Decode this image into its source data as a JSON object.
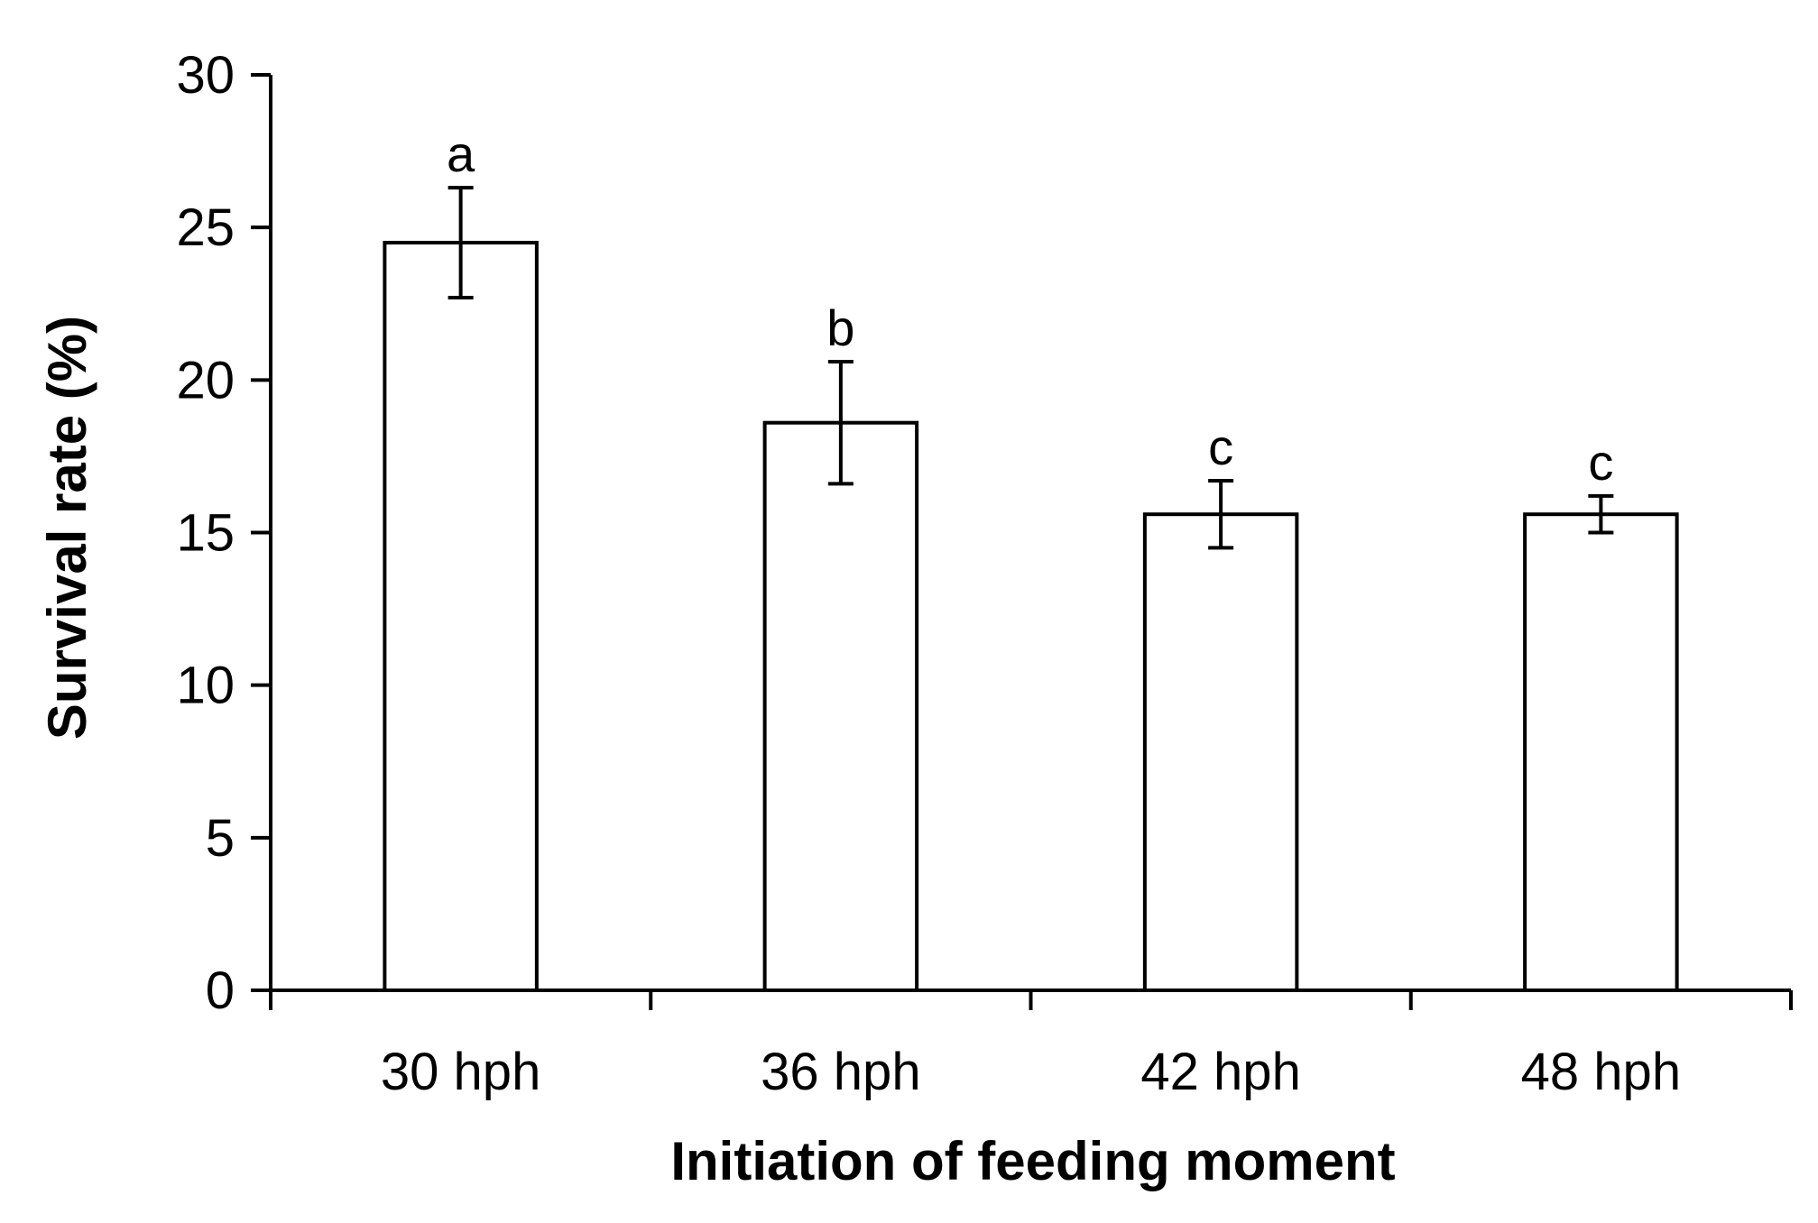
{
  "chart_data": {
    "type": "bar",
    "title": "",
    "xlabel": "Initiation of feeding moment",
    "ylabel": "Survival rate (%)",
    "ylim": [
      0,
      30
    ],
    "yticks": [
      0,
      5,
      10,
      15,
      20,
      25,
      30
    ],
    "categories": [
      "30 hph",
      "36 hph",
      "42 hph",
      "48 hph"
    ],
    "values": [
      24.5,
      18.6,
      15.6,
      15.6
    ],
    "errors": [
      1.8,
      2.0,
      1.1,
      0.6
    ],
    "significance_letters": [
      "a",
      "b",
      "c",
      "c"
    ],
    "grid": false,
    "legend": null
  },
  "colors": {
    "bar_fill": "#ffffff",
    "bar_stroke": "#000000",
    "axis": "#000000"
  }
}
